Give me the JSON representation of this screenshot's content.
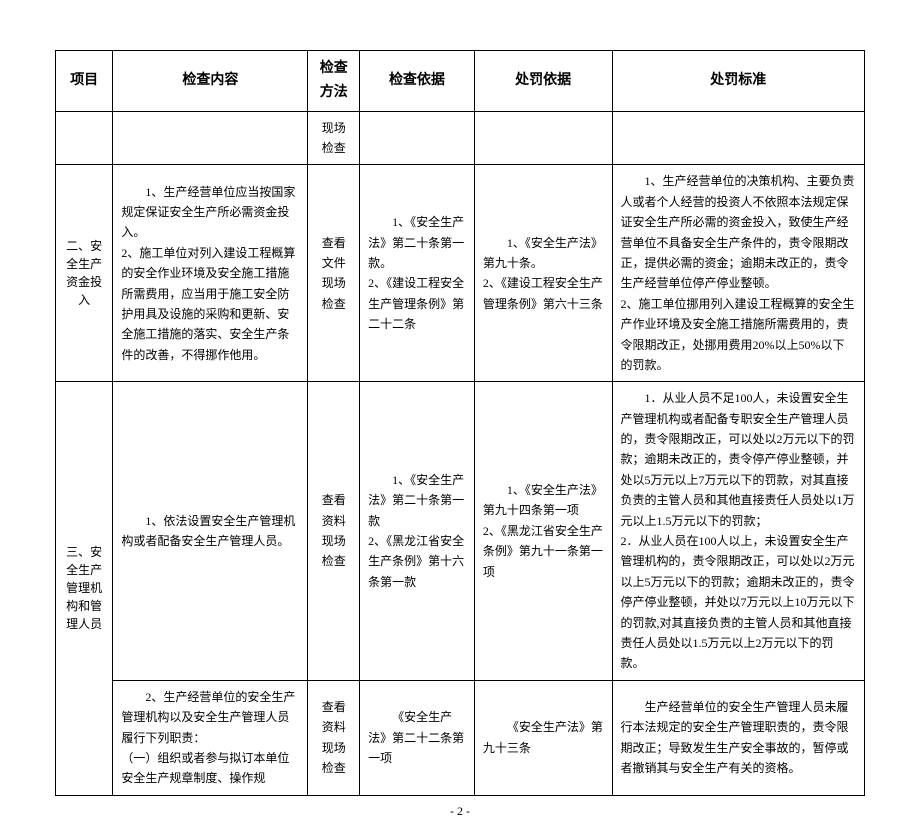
{
  "table": {
    "headers": {
      "project": "项目",
      "content": "检查内容",
      "method": "检查方法",
      "basis": "检查依据",
      "penalty_basis": "处罚依据",
      "penalty_std": "处罚标准"
    },
    "rows": [
      {
        "project": "",
        "content": "",
        "method": "现场检查",
        "basis": "",
        "penalty_basis": "",
        "penalty_std": ""
      },
      {
        "project": "二、安全生产资金投入",
        "content": "1、生产经营单位应当按国家规定保证安全生产所必需资金投入。\n2、施工单位对列入建设工程概算的安全作业环境及安全施工措施所需费用，应当用于施工安全防护用具及设施的采购和更新、安全施工措施的落实、安全生产条件的改善，不得挪作他用。",
        "method": "查看文件\n现场检查",
        "basis": "1、《安全生产法》第二十条第一款。\n2、《建设工程安全生产管理条例》第二十二条",
        "penalty_basis": "1、《安全生产法》第九十条。\n2、《建设工程安全生产管理条例》第六十三条",
        "penalty_std": "1、生产经营单位的决策机构、主要负责人或者个人经营的投资人不依照本法规定保证安全生产所必需的资金投入，致使生产经营单位不具备安全生产条件的，责令限期改正，提供必需的资金；逾期未改正的，责令生产经营单位停产停业整顿。\n2、施工单位挪用列入建设工程概算的安全生产作业环境及安全施工措施所需费用的，责令限期改正，处挪用费用20%以上50%以下的罚款。"
      },
      {
        "project": "三、安全生产管理机构和管理人员",
        "content_a": "1、依法设置安全生产管理机构或者配备安全生产管理人员。",
        "method_a": "查看资料\n现场检查",
        "basis_a": "1、《安全生产法》第二十条第一款\n2、《黑龙江省安全生产条例》第十六条第一款",
        "penalty_basis_a": "1、《安全生产法》第九十四条第一项\n2、《黑龙江省安全生产条例》第九十一条第一项",
        "penalty_std_a": "1．从业人员不足100人，未设置安全生产管理机构或者配备专职安全生产管理人员的，责令限期改正，可以处以2万元以下的罚款；逾期未改正的，责令停产停业整顿，并处以5万元以上7万元以下的罚款，对其直接负责的主管人员和其他直接责任人员处以1万元以上1.5万元以下的罚款；\n2．从业人员在100人以上，未设置安全生产管理机构的，责令限期改正，可以处以2万元以上5万元以下的罚款；逾期未改正的，责令停产停业整顿，并处以7万元以上10万元以下的罚款,对其直接负责的主管人员和其他直接责任人员处以1.5万元以上2万元以下的罚款。",
        "content_b": "2、生产经营单位的安全生产管理机构以及安全生产管理人员履行下列职责：\n（一）组织或者参与拟订本单位安全生产规章制度、操作规",
        "method_b": "查看资料\n现场检查",
        "basis_b": "《安全生产法》第二十二条第一项",
        "penalty_basis_b": "《安全生产法》第九十三条",
        "penalty_std_b": "生产经营单位的安全生产管理人员未履行本法规定的安全生产管理职责的，责令限期改正；导致发生生产安全事故的，暂停或者撤销其与安全生产有关的资格。"
      }
    ],
    "page_number": "- 2 -"
  },
  "style": {
    "background_color": "#ffffff",
    "border_color": "#000000",
    "text_color": "#000000",
    "header_fontsize": 14,
    "cell_fontsize": 12,
    "line_height": 1.7
  }
}
